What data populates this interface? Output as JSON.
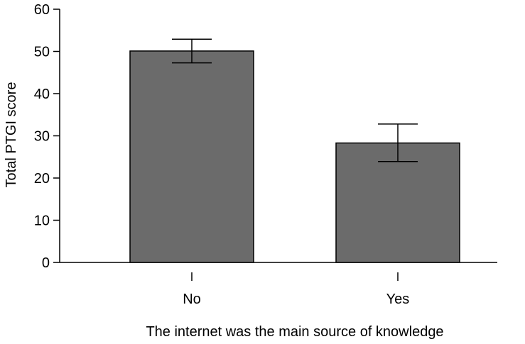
{
  "chart_data": {
    "type": "bar",
    "title": "",
    "xlabel": "The internet was the main source of knowledge",
    "ylabel": "Total PTGI score",
    "categories": [
      "No",
      "Yes"
    ],
    "values": [
      50.1,
      28.3
    ],
    "error_low": [
      47.3,
      23.9
    ],
    "error_high": [
      52.9,
      32.8
    ],
    "ylim": [
      0,
      60
    ],
    "yticks": [
      0,
      10,
      20,
      30,
      40,
      50,
      60
    ],
    "grid": false,
    "legend": "none",
    "bar_color": "#6b6b6b",
    "axis_color": "#000000"
  }
}
